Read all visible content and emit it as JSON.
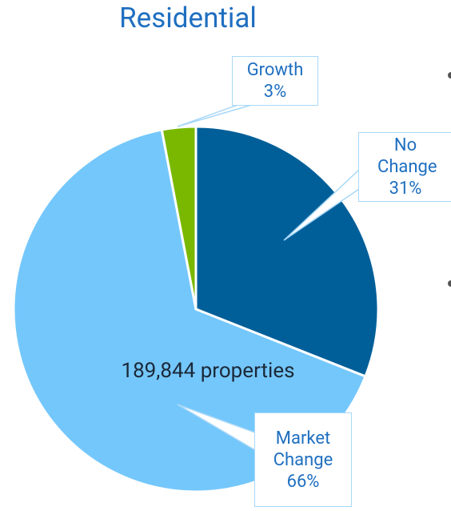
{
  "chart_data": {
    "type": "pie",
    "title": "Residential",
    "categories": [
      "No Change",
      "Market Change",
      "Growth"
    ],
    "values": [
      31,
      66,
      3
    ],
    "value_labels": [
      "31%",
      "66%",
      "3%"
    ],
    "colors": [
      "#005f99",
      "#74c7fb",
      "#7ab800"
    ],
    "annotation": "189,844 properties"
  }
}
